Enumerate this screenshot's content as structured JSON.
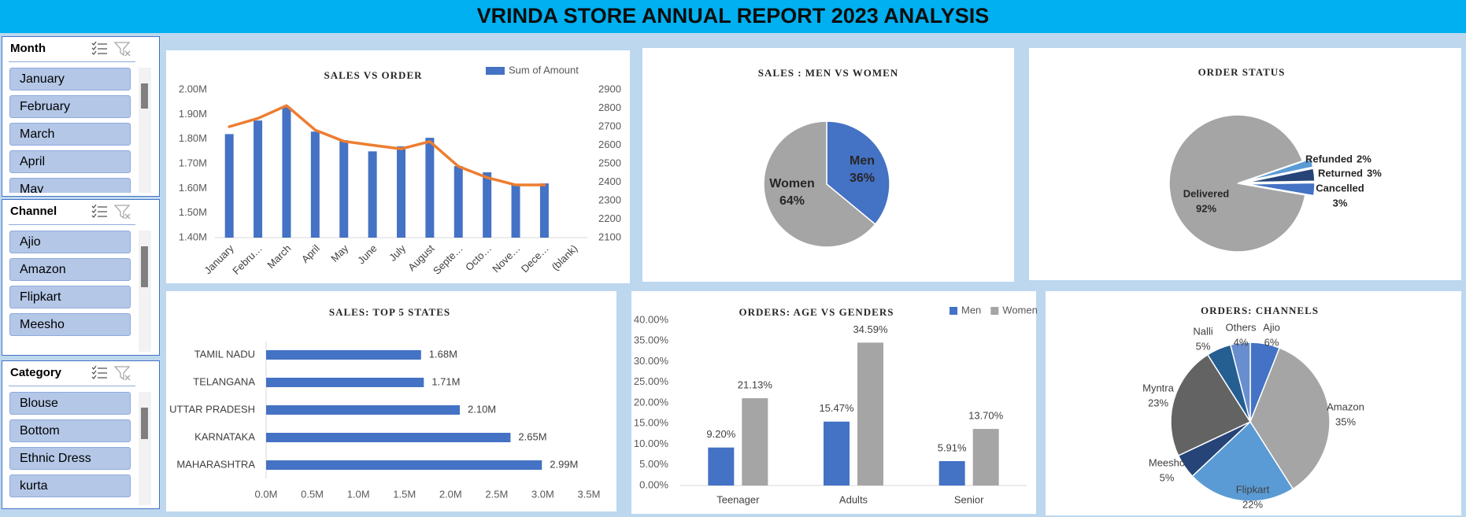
{
  "header": {
    "title": "VRINDA STORE ANNUAL REPORT 2023 ANALYSIS"
  },
  "slicers": [
    {
      "title": "Month",
      "items": [
        "January",
        "February",
        "March",
        "April",
        "May"
      ]
    },
    {
      "title": "Channel",
      "items": [
        "Ajio",
        "Amazon",
        "Flipkart",
        "Meesho"
      ]
    },
    {
      "title": "Category",
      "items": [
        "Blouse",
        "Bottom",
        "Ethnic Dress",
        "kurta"
      ]
    }
  ],
  "chart_data": [
    {
      "type": "combo",
      "title": "SALES VS ORDER",
      "categories": [
        "January",
        "Febru…",
        "March",
        "April",
        "May",
        "June",
        "July",
        "August",
        "Septe…",
        "Octo…",
        "Nove…",
        "Dece…",
        "(blank)"
      ],
      "series": [
        {
          "name": "Sum of Amount",
          "type": "bar",
          "color": "#4472c4",
          "values": [
            1.82,
            1.875,
            1.93,
            1.83,
            1.795,
            1.75,
            1.77,
            1.805,
            1.69,
            1.665,
            1.615,
            1.62,
            null
          ]
        },
        {
          "type": "line",
          "axis": "y2",
          "color": "#ed7d31",
          "values": [
            2700,
            2745,
            2814,
            2682,
            2621,
            2600,
            2580,
            2620,
            2485,
            2425,
            2385,
            2385,
            null
          ]
        }
      ],
      "ylim": [
        1.4,
        2.0
      ],
      "yticks": [
        {
          "value": 1.4,
          "label": "1.40M"
        },
        {
          "value": 1.5,
          "label": "1.50M"
        },
        {
          "value": 1.6,
          "label": "1.60M"
        },
        {
          "value": 1.7,
          "label": "1.70M"
        },
        {
          "value": 1.8,
          "label": "1.80M"
        },
        {
          "value": 1.9,
          "label": "1.90M"
        },
        {
          "value": 2.0,
          "label": "2.00M"
        }
      ],
      "y2lim": [
        2100,
        2900
      ],
      "y2ticks": [
        2100,
        2200,
        2300,
        2400,
        2500,
        2600,
        2700,
        2800,
        2900
      ],
      "legend": "top-right"
    },
    {
      "type": "pie",
      "title": "SALES : MEN VS WOMEN",
      "categories": [
        "Men",
        "Women"
      ],
      "values": [
        36,
        64
      ],
      "value_labels": [
        "36%",
        "64%"
      ],
      "colors": [
        "#4472c4",
        "#a5a5a5"
      ]
    },
    {
      "type": "pie",
      "title": "ORDER STATUS",
      "categories": [
        "Refunded",
        "Returned",
        "Cancelled",
        "Delivered"
      ],
      "values": [
        2,
        3,
        3,
        92
      ],
      "value_labels": [
        "2%",
        "3%",
        "3%",
        "92%"
      ],
      "colors": [
        "#5b9bd5",
        "#264478",
        "#4472c4",
        "#a5a5a5"
      ]
    },
    {
      "type": "hbar",
      "title": "SALES: TOP 5 STATES",
      "categories": [
        "TAMIL NADU",
        "TELANGANA",
        "UTTAR PRADESH",
        "KARNATAKA",
        "MAHARASHTRA"
      ],
      "values": [
        1.68,
        1.71,
        2.1,
        2.65,
        2.99
      ],
      "value_labels": [
        "1.68M",
        "1.71M",
        "2.10M",
        "2.65M",
        "2.99M"
      ],
      "color": "#4472c4",
      "xlim": [
        0,
        3.5
      ],
      "xticks": [
        {
          "value": 0,
          "label": "0.0M"
        },
        {
          "value": 0.5,
          "label": "0.5M"
        },
        {
          "value": 1,
          "label": "1.0M"
        },
        {
          "value": 1.5,
          "label": "1.5M"
        },
        {
          "value": 2,
          "label": "2.0M"
        },
        {
          "value": 2.5,
          "label": "2.5M"
        },
        {
          "value": 3,
          "label": "3.0M"
        },
        {
          "value": 3.5,
          "label": "3.5M"
        }
      ]
    },
    {
      "type": "grouped_bar",
      "title": "ORDERS: AGE VS GENDERS",
      "categories": [
        "Teenager",
        "Adults",
        "Senior"
      ],
      "series": [
        {
          "name": "Men",
          "color": "#4472c4",
          "values": [
            9.2,
            15.47,
            5.91
          ],
          "value_labels": [
            "9.20%",
            "15.47%",
            "5.91%"
          ]
        },
        {
          "name": "Women",
          "color": "#a5a5a5",
          "values": [
            21.13,
            34.59,
            13.7
          ],
          "value_labels": [
            "21.13%",
            "34.59%",
            "13.70%"
          ]
        }
      ],
      "ylim": [
        0,
        40
      ],
      "yticks": [
        {
          "value": 0,
          "label": "0.00%"
        },
        {
          "value": 5,
          "label": "5.00%"
        },
        {
          "value": 10,
          "label": "10.00%"
        },
        {
          "value": 15,
          "label": "15.00%"
        },
        {
          "value": 20,
          "label": "20.00%"
        },
        {
          "value": 25,
          "label": "25.00%"
        },
        {
          "value": 30,
          "label": "30.00%"
        },
        {
          "value": 35,
          "label": "35.00%"
        },
        {
          "value": 40,
          "label": "40.00%"
        }
      ],
      "legend": "top-right"
    },
    {
      "type": "pie",
      "title": "ORDERS: CHANNELS",
      "categories": [
        "Ajio",
        "Amazon",
        "Flipkart",
        "Meesho",
        "Myntra",
        "Nalli",
        "Others"
      ],
      "values": [
        6,
        35,
        22,
        5,
        23,
        5,
        4
      ],
      "value_labels": [
        "6%",
        "35%",
        "22%",
        "5%",
        "23%",
        "5%",
        "4%"
      ],
      "colors": [
        "#4472c4",
        "#a5a5a5",
        "#5b9bd5",
        "#264478",
        "#636363",
        "#255e91",
        "#698ed0"
      ]
    }
  ]
}
